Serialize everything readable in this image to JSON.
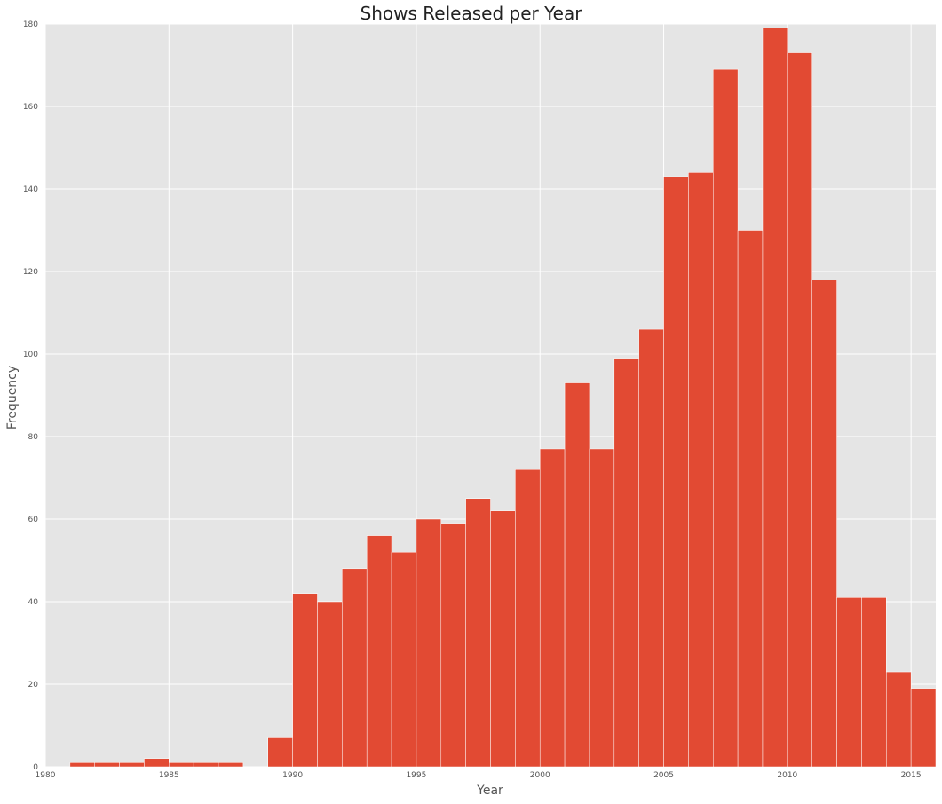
{
  "chart_data": {
    "type": "bar",
    "title": "Shows Released per Year",
    "xlabel": "Year",
    "ylabel": "Frequency",
    "xlim": [
      1980,
      2016
    ],
    "ylim": [
      0,
      180
    ],
    "x_ticks": [
      1980,
      1985,
      1990,
      1995,
      2000,
      2005,
      2010,
      2015
    ],
    "y_ticks": [
      0,
      20,
      40,
      60,
      80,
      100,
      120,
      140,
      160,
      180
    ],
    "grid": true,
    "bar_color": "#E24A33",
    "background_color": "#E5E5E5",
    "bars": [
      {
        "x0": 1981.0,
        "x1": 1982.0,
        "value": 1
      },
      {
        "x0": 1982.0,
        "x1": 1983.0,
        "value": 1
      },
      {
        "x0": 1983.0,
        "x1": 1984.0,
        "value": 1
      },
      {
        "x0": 1984.0,
        "x1": 1985.0,
        "value": 2
      },
      {
        "x0": 1985.0,
        "x1": 1986.0,
        "value": 1
      },
      {
        "x0": 1986.0,
        "x1": 1987.0,
        "value": 1
      },
      {
        "x0": 1987.0,
        "x1": 1988.0,
        "value": 1
      },
      {
        "x0": 1988.0,
        "x1": 1989.0,
        "value": 0
      },
      {
        "x0": 1989.0,
        "x1": 1990.0,
        "value": 7
      },
      {
        "x0": 1990.0,
        "x1": 1991.0,
        "value": 42
      },
      {
        "x0": 1991.0,
        "x1": 1992.0,
        "value": 40
      },
      {
        "x0": 1992.0,
        "x1": 1993.0,
        "value": 48
      },
      {
        "x0": 1993.0,
        "x1": 1994.0,
        "value": 56
      },
      {
        "x0": 1994.0,
        "x1": 1995.0,
        "value": 52
      },
      {
        "x0": 1995.0,
        "x1": 1996.0,
        "value": 60
      },
      {
        "x0": 1996.0,
        "x1": 1997.0,
        "value": 59
      },
      {
        "x0": 1997.0,
        "x1": 1998.0,
        "value": 65
      },
      {
        "x0": 1998.0,
        "x1": 1999.0,
        "value": 62
      },
      {
        "x0": 1999.0,
        "x1": 2000.0,
        "value": 72
      },
      {
        "x0": 2000.0,
        "x1": 2001.0,
        "value": 77
      },
      {
        "x0": 2001.0,
        "x1": 2002.0,
        "value": 93
      },
      {
        "x0": 2002.0,
        "x1": 2003.0,
        "value": 77
      },
      {
        "x0": 2003.0,
        "x1": 2004.0,
        "value": 99
      },
      {
        "x0": 2004.0,
        "x1": 2005.0,
        "value": 106
      },
      {
        "x0": 2005.0,
        "x1": 2006.0,
        "value": 143
      },
      {
        "x0": 2006.0,
        "x1": 2007.0,
        "value": 144
      },
      {
        "x0": 2007.0,
        "x1": 2008.0,
        "value": 169
      },
      {
        "x0": 2008.0,
        "x1": 2009.0,
        "value": 130
      },
      {
        "x0": 2009.0,
        "x1": 2010.0,
        "value": 179
      },
      {
        "x0": 2010.0,
        "x1": 2011.0,
        "value": 173
      },
      {
        "x0": 2011.0,
        "x1": 2012.0,
        "value": 118
      },
      {
        "x0": 2012.0,
        "x1": 2013.0,
        "value": 41
      },
      {
        "x0": 2013.0,
        "x1": 2014.0,
        "value": 41
      },
      {
        "x0": 2014.0,
        "x1": 2015.0,
        "value": 23
      },
      {
        "x0": 2015.0,
        "x1": 2016.0,
        "value": 19
      }
    ]
  }
}
